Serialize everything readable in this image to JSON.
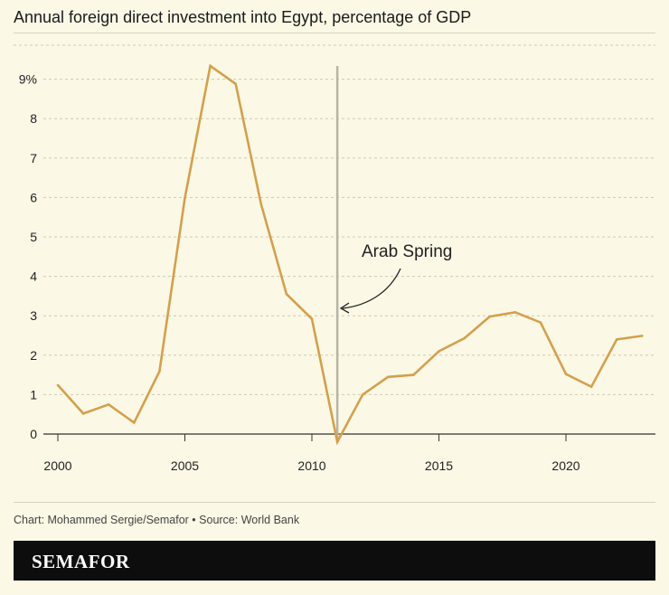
{
  "chart_data": {
    "type": "line",
    "title": "Annual foreign direct investment into Egypt, percentage of GDP",
    "xlabel": "",
    "ylabel": "",
    "xlim": [
      2000,
      2023
    ],
    "ylim": [
      0,
      9.3
    ],
    "x_ticks": [
      {
        "value": 2000,
        "label": "2000"
      },
      {
        "value": 2005,
        "label": "2005"
      },
      {
        "value": 2010,
        "label": "2010"
      },
      {
        "value": 2015,
        "label": "2015"
      },
      {
        "value": 2020,
        "label": "2020"
      }
    ],
    "y_ticks": [
      {
        "value": 0,
        "label": "0"
      },
      {
        "value": 1,
        "label": "1"
      },
      {
        "value": 2,
        "label": "2"
      },
      {
        "value": 3,
        "label": "3"
      },
      {
        "value": 4,
        "label": "4"
      },
      {
        "value": 5,
        "label": "5"
      },
      {
        "value": 6,
        "label": "6"
      },
      {
        "value": 7,
        "label": "7"
      },
      {
        "value": 8,
        "label": "8"
      },
      {
        "value": 9,
        "label": "9%"
      }
    ],
    "grid": true,
    "series": [
      {
        "color": "#d4a04c",
        "x": [
          2000,
          2001,
          2002,
          2003,
          2004,
          2005,
          2006,
          2007,
          2008,
          2009,
          2010,
          2011,
          2012,
          2013,
          2014,
          2015,
          2016,
          2017,
          2018,
          2019,
          2020,
          2021,
          2022,
          2023
        ],
        "values": [
          1.24,
          0.52,
          0.75,
          0.29,
          1.59,
          5.99,
          9.34,
          8.88,
          5.83,
          3.55,
          2.92,
          -0.2,
          1.0,
          1.45,
          1.5,
          2.1,
          2.43,
          2.98,
          3.09,
          2.83,
          1.52,
          1.2,
          2.4,
          2.49
        ]
      }
    ],
    "annotations": [
      {
        "label": "Arab Spring",
        "x": 2011,
        "marker": "vertical-line",
        "marker_color": "#b8b4a4"
      }
    ]
  },
  "footer": {
    "source": "Chart: Mohammed Sergie/Semafor • Source: World Bank",
    "brand": "SEMAFOR"
  }
}
